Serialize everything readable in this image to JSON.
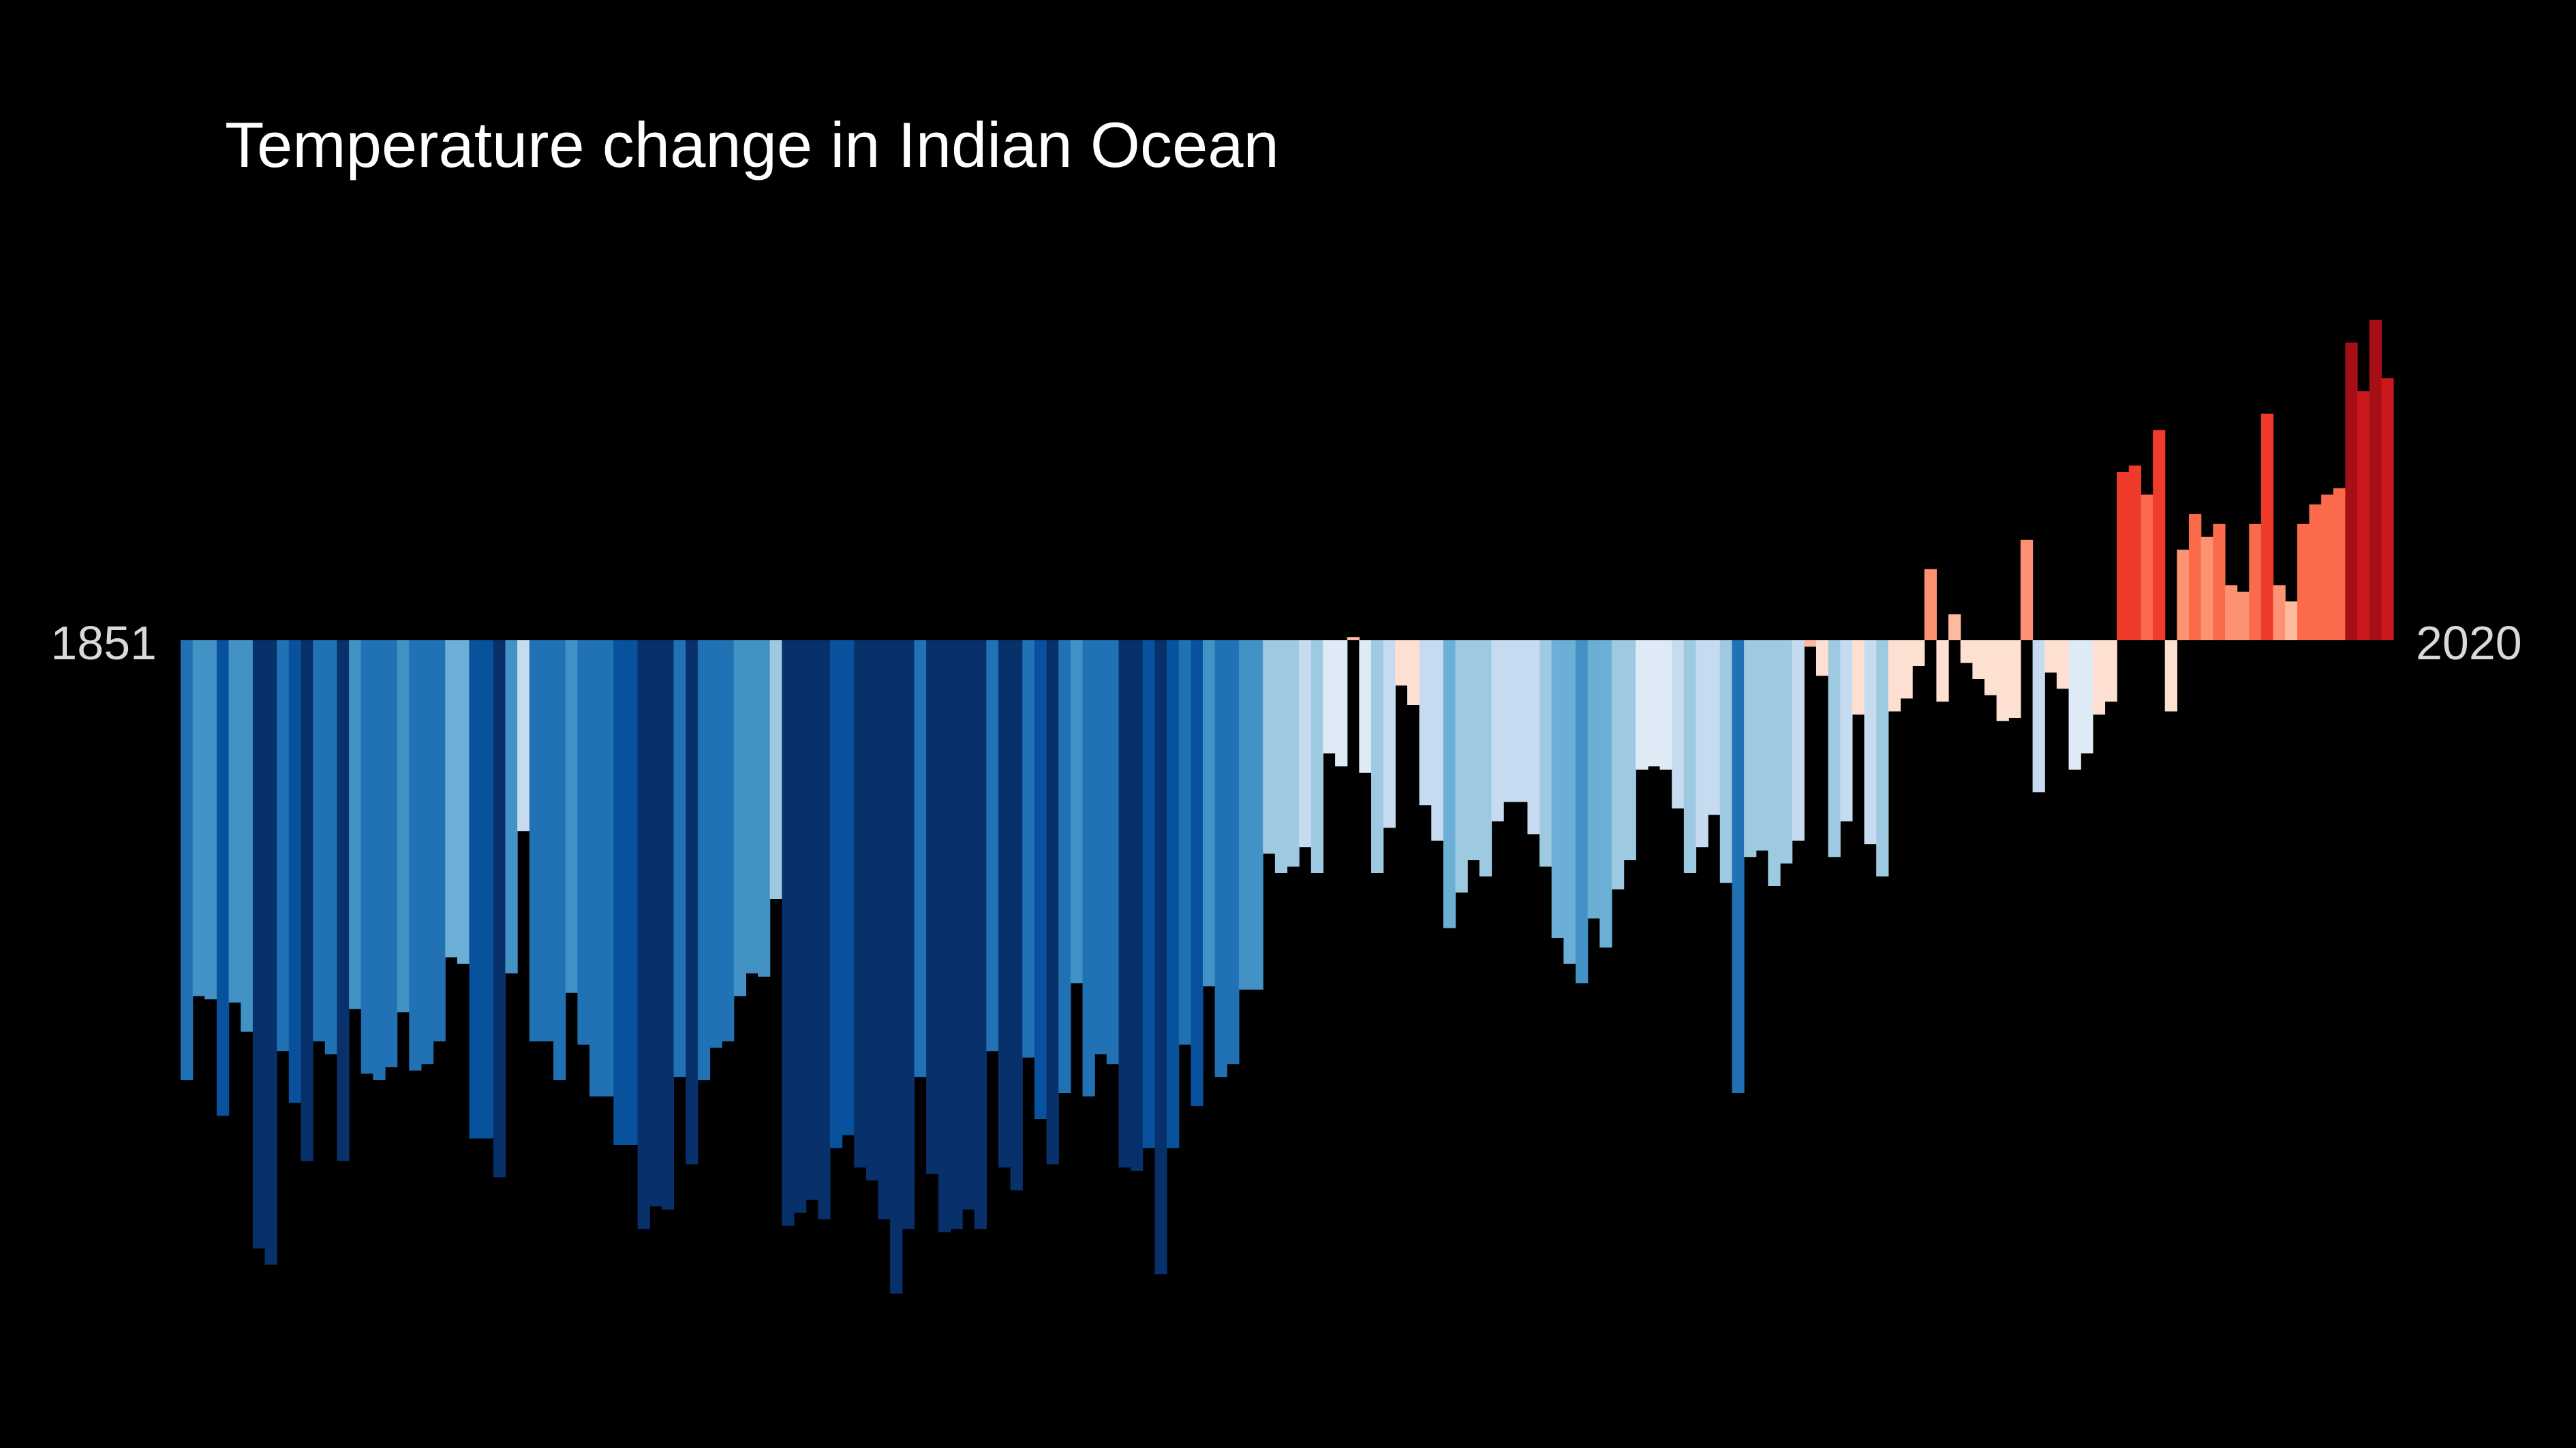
{
  "chart_data": {
    "type": "bar",
    "title": "Temperature change in Indian Ocean",
    "x_start_label": "1851",
    "x_end_label": "2020",
    "x_range": [
      1851,
      2020
    ],
    "unit": "relative anomaly (pixel-estimated)",
    "ylim": [
      -1.0,
      0.75
    ],
    "values": [
      -0.68,
      -0.55,
      -0.555,
      -0.735,
      -0.56,
      -0.605,
      -0.94,
      -0.965,
      -0.635,
      -0.715,
      -0.805,
      -0.62,
      -0.64,
      -0.805,
      -0.57,
      -0.67,
      -0.68,
      -0.66,
      -0.575,
      -0.665,
      -0.655,
      -0.62,
      -0.49,
      -0.5,
      -0.77,
      -0.77,
      -0.83,
      -0.515,
      -0.295,
      -0.62,
      -0.62,
      -0.68,
      -0.545,
      -0.625,
      -0.705,
      -0.705,
      -0.78,
      -0.78,
      -0.91,
      -0.875,
      -0.88,
      -0.675,
      -0.81,
      -0.68,
      -0.63,
      -0.62,
      -0.55,
      -0.515,
      -0.52,
      -0.4,
      -0.905,
      -0.885,
      -0.865,
      -0.895,
      -0.785,
      -0.765,
      -0.815,
      -0.835,
      -0.895,
      -1.01,
      -0.91,
      -0.675,
      -0.825,
      -0.915,
      -0.91,
      -0.88,
      -0.91,
      -0.635,
      -0.815,
      -0.85,
      -0.645,
      -0.74,
      -0.81,
      -0.7,
      -0.53,
      -0.705,
      -0.64,
      -0.655,
      -0.815,
      -0.82,
      -0.785,
      -0.98,
      -0.785,
      -0.625,
      -0.72,
      -0.535,
      -0.675,
      -0.655,
      -0.54,
      -0.54,
      -0.33,
      -0.36,
      -0.35,
      -0.32,
      -0.36,
      -0.175,
      -0.195,
      0.005,
      -0.205,
      -0.36,
      -0.29,
      -0.07,
      -0.1,
      -0.255,
      -0.31,
      -0.445,
      -0.39,
      -0.34,
      -0.365,
      -0.28,
      -0.25,
      -0.25,
      -0.3,
      -0.35,
      -0.46,
      -0.5,
      -0.53,
      -0.43,
      -0.475,
      -0.385,
      -0.34,
      -0.2,
      -0.195,
      -0.2,
      -0.26,
      -0.36,
      -0.32,
      -0.27,
      -0.375,
      -0.7,
      -0.335,
      -0.325,
      -0.38,
      -0.345,
      -0.31,
      -0.01,
      -0.055,
      -0.335,
      -0.28,
      -0.115,
      -0.315,
      -0.365,
      -0.11,
      -0.09,
      -0.04,
      0.11,
      -0.095,
      0.04,
      -0.035,
      -0.06,
      -0.085,
      -0.125,
      -0.12,
      0.155,
      -0.235,
      -0.05,
      -0.075,
      -0.2,
      -0.175,
      -0.115,
      -0.095,
      0.26,
      0.27,
      0.225,
      0.325,
      -0.11,
      0.14,
      0.195,
      0.16,
      0.18,
      0.085,
      0.075,
      0.18,
      0.35,
      0.085,
      0.06,
      0.18,
      0.21,
      0.225,
      0.235,
      0.46,
      0.385,
      0.495,
      0.405
    ],
    "colors_note": "diverging blue-to-red scale by value",
    "color_scale": [
      "#08306b",
      "#08519c",
      "#2171b5",
      "#4292c6",
      "#6baed6",
      "#9ecae1",
      "#c6dbef",
      "#deebf7",
      "#fee0d2",
      "#fcbba1",
      "#fc9272",
      "#fb6a4a",
      "#ef3b2c",
      "#cb181d",
      "#a50f15"
    ],
    "grid": false,
    "legend": "none"
  }
}
